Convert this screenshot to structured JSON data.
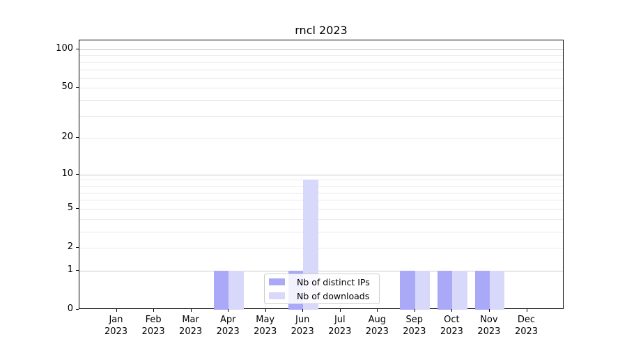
{
  "chart_data": {
    "type": "bar",
    "title": "rncl 2023",
    "year_label": "2023",
    "categories": [
      "Jan",
      "Feb",
      "Mar",
      "Apr",
      "May",
      "Jun",
      "Jul",
      "Aug",
      "Sep",
      "Oct",
      "Nov",
      "Dec"
    ],
    "series": [
      {
        "name": "Nb of distinct IPs",
        "color": "#a9a9f8",
        "values": [
          0,
          0,
          0,
          1,
          0,
          1,
          0,
          0,
          1,
          1,
          1,
          0
        ]
      },
      {
        "name": "Nb of downloads",
        "color": "#d8d8fa",
        "values": [
          0,
          0,
          0,
          1,
          0,
          9,
          0,
          0,
          1,
          1,
          1,
          0
        ]
      }
    ],
    "xlabel": "",
    "ylabel": "",
    "yscale": "log10(1+y)",
    "ylim": [
      0,
      117.5
    ],
    "yticks_labeled": [
      0,
      1,
      2,
      5,
      10,
      20,
      50,
      100
    ],
    "ygrid_major": [
      1,
      10,
      100
    ],
    "ygrid_minor": [
      2,
      3,
      4,
      5,
      6,
      7,
      8,
      9,
      20,
      30,
      40,
      50,
      60,
      70,
      80,
      90
    ],
    "grid": "horizontal",
    "legend_position": "lower center",
    "colors": {
      "major_grid": "#c9c9c9",
      "minor_grid": "#e9e9e9",
      "axis": "#000000",
      "background": "#ffffff"
    }
  }
}
